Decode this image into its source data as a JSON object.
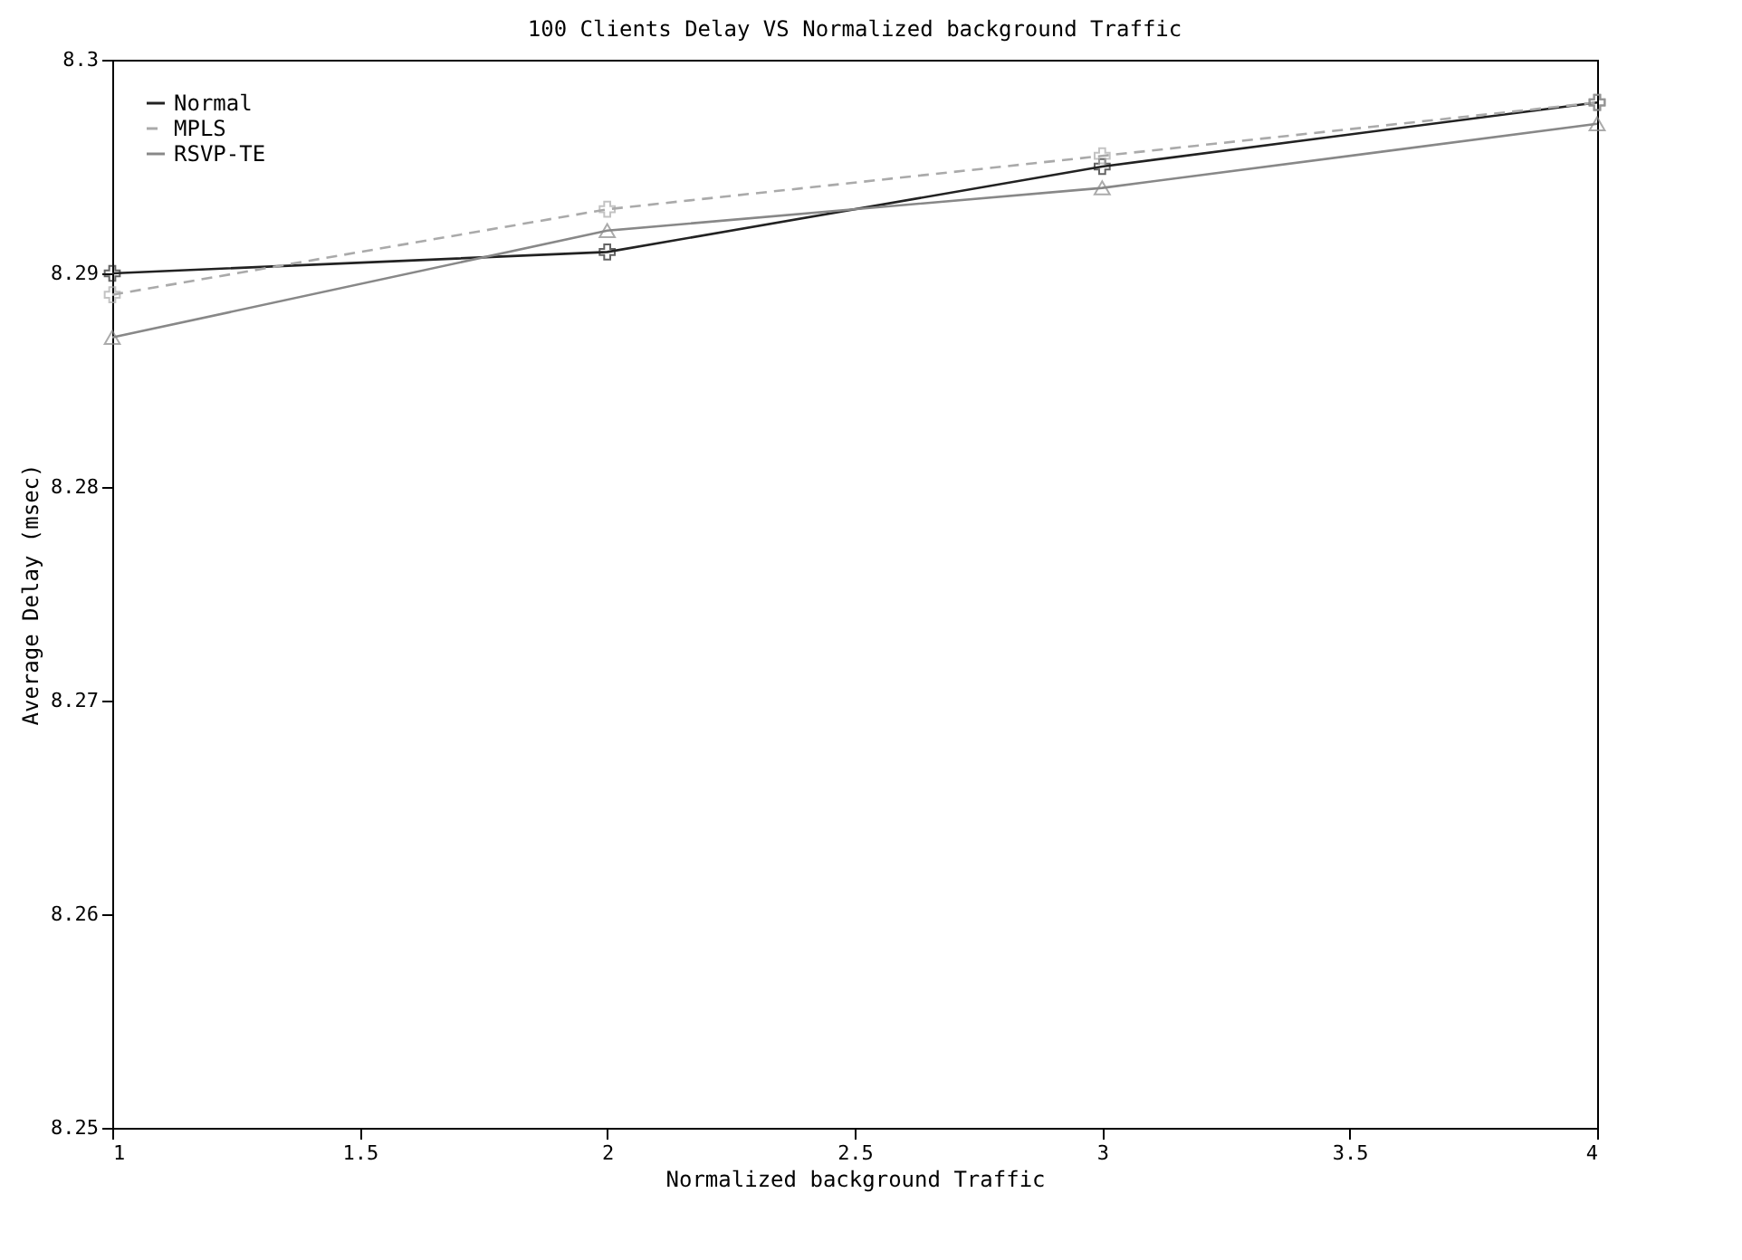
{
  "chart_data": {
    "type": "line",
    "title": "100 Clients Delay VS Normalized background Traffic",
    "xlabel": "Normalized background Traffic",
    "ylabel": "Average Delay (msec)",
    "x": [
      1,
      2,
      3,
      4
    ],
    "series": [
      {
        "name": "Normal",
        "color": "#222222",
        "marker": "cross",
        "line_style": "solid",
        "values": [
          8.29,
          8.291,
          8.295,
          8.298
        ]
      },
      {
        "name": "MPLS",
        "color": "#aaaaaa",
        "marker": "cross",
        "line_style": "dashed",
        "values": [
          8.289,
          8.293,
          8.2955,
          8.298
        ]
      },
      {
        "name": "RSVP-TE",
        "color": "#888888",
        "marker": "triangle",
        "line_style": "solid",
        "values": [
          8.287,
          8.292,
          8.294,
          8.297
        ]
      }
    ],
    "xlim": [
      1,
      4
    ],
    "xticks": [
      1,
      1.5,
      2,
      2.5,
      3,
      3.5,
      4
    ],
    "ylim": [
      8.25,
      8.3
    ],
    "yticks": [
      8.25,
      8.26,
      8.27,
      8.28,
      8.29,
      8.3
    ],
    "grid": false,
    "legend": "top left"
  }
}
